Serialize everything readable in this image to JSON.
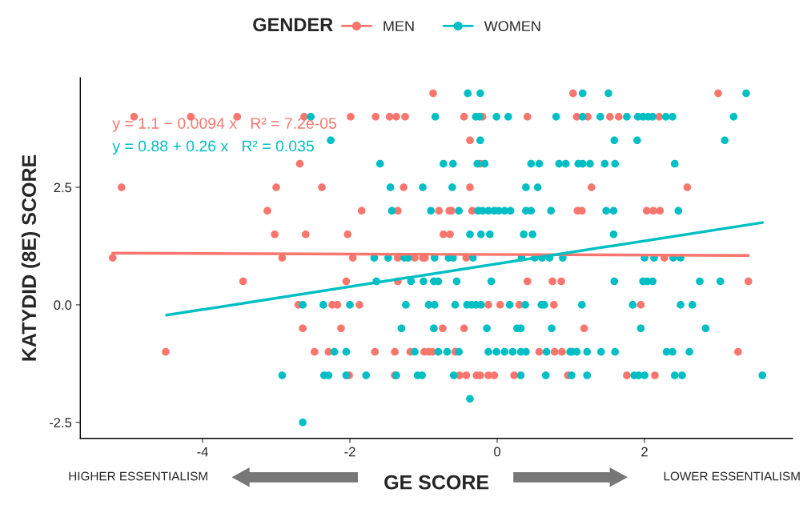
{
  "chart_data": {
    "type": "scatter",
    "xlabel": "GE SCORE",
    "ylabel": "KATYDID (8E) SCORE",
    "legend_title": "GENDER",
    "legend": "top",
    "marker": "circle",
    "xlim": [
      -5.66,
      4.01
    ],
    "ylim": [
      -2.84,
      4.83
    ],
    "xticks": [
      -4,
      -2,
      0,
      2
    ],
    "yticks": [
      {
        "value": -2.5,
        "label": "-2.5"
      },
      {
        "value": 0,
        "label": "0.0"
      },
      {
        "value": 2.5,
        "label": "2.5"
      }
    ],
    "annotations": [
      "y = 1.1 − 0.0094 x   R² = 7.2e-05",
      "y = 0.88 + 0.26 x   R² = 0.035",
      "HIGHER ESSENTIALISM",
      "LOWER ESSENTIALISM"
    ],
    "series": [
      {
        "name": "MEN",
        "color": "#f8766d",
        "x": [
          -0.87,
          1.03,
          3.0,
          -4.93,
          -4.16,
          -3.53,
          -2.62,
          -1.99,
          -1.65,
          -1.46,
          -1.37,
          -1.25,
          -0.45,
          -0.2,
          0.41,
          1.08,
          1.23,
          1.53,
          1.65,
          2.2,
          -0.37,
          -2.68,
          -0.23,
          -5.1,
          -3.0,
          -2.38,
          -1.27,
          -0.37,
          1.28,
          2.58,
          -3.12,
          -1.84,
          -1.35,
          -0.79,
          -0.65,
          -0.62,
          -0.34,
          1.09,
          1.15,
          2.03,
          2.12,
          2.21,
          -3.02,
          -2.6,
          -2.03,
          -0.73,
          -0.64,
          -5.22,
          -2.92,
          -1.96,
          -1.35,
          -1.12,
          -1.01,
          -0.98,
          -0.42,
          2.27,
          -3.45,
          -2.05,
          -1.35,
          0.41,
          0.75,
          0.87,
          3.41,
          -2.7,
          -2.24,
          -2.17,
          -1.87,
          -0.12,
          0.04,
          0.3,
          0.77,
          1.95,
          -2.64,
          -2.12,
          -0.74,
          -0.45,
          1.18,
          -4.5,
          -2.48,
          -2.29,
          -1.66,
          -1.39,
          -1.18,
          -0.99,
          -0.93,
          -0.88,
          -0.57,
          0.57,
          0.78,
          0.88,
          3.27,
          -2.01,
          -1.39,
          -0.51,
          -0.42,
          -0.28,
          -0.23,
          -0.12,
          -0.04,
          0.23,
          0.96,
          1.76,
          2.14
        ],
        "values": [
          4.5,
          4.5,
          4.5,
          4,
          4,
          4,
          4,
          4,
          4,
          4,
          4,
          4,
          4,
          4,
          4,
          4,
          4,
          4,
          4,
          4,
          3.5,
          3,
          3,
          2.5,
          2.5,
          2.5,
          2.5,
          2.5,
          2.5,
          2.5,
          2,
          2,
          2,
          2,
          2,
          2,
          2,
          2,
          2,
          2,
          2,
          2,
          1.5,
          1.5,
          1.5,
          1.5,
          1.5,
          1,
          1,
          1,
          1,
          1,
          1,
          1,
          1,
          1,
          0.5,
          0.5,
          0.5,
          0.5,
          0.5,
          0.5,
          0.5,
          0,
          0,
          0,
          0,
          0,
          0,
          0,
          0,
          0,
          -0.5,
          -0.5,
          -0.5,
          -0.5,
          -0.5,
          -1,
          -1,
          -1,
          -1,
          -1,
          -1,
          -1,
          -1,
          -1,
          -1,
          -1,
          -1,
          -1,
          -1,
          -1.5,
          -1.5,
          -1.5,
          -1.5,
          -1.5,
          -1.5,
          -1.5,
          -1.5,
          -1.5,
          -1.5,
          -1.5,
          -1.5
        ]
      },
      {
        "name": "WOMEN",
        "color": "#00bfc4",
        "x": [
          -0.4,
          -0.23,
          1.16,
          1.51,
          3.38,
          -2.53,
          -0.84,
          -0.29,
          -0.24,
          -0.01,
          0.15,
          0.8,
          1.16,
          1.4,
          1.76,
          1.91,
          1.98,
          2.05,
          2.11,
          2.29,
          2.38,
          3.21,
          -2.26,
          -0.23,
          1.59,
          1.9,
          3.09,
          -1.59,
          -0.73,
          -0.6,
          -0.27,
          -0.17,
          0.46,
          0.57,
          0.84,
          0.93,
          1.1,
          1.16,
          1.26,
          1.46,
          1.6,
          2.41,
          -1.45,
          -1.01,
          -0.61,
          0.39,
          0.55,
          -1.43,
          -0.9,
          -0.52,
          -0.26,
          -0.2,
          -0.12,
          -0.04,
          0.02,
          0.1,
          0.18,
          0.39,
          0.46,
          0.73,
          1.48,
          1.58,
          2.46,
          -0.37,
          -0.22,
          -0.1,
          0.36,
          0.48,
          1.58,
          -1.67,
          -1.48,
          -1.26,
          -1.21,
          -0.85,
          -0.66,
          -0.6,
          -0.33,
          0.33,
          0.51,
          0.61,
          0.71,
          0.89,
          2.0,
          2.13,
          2.39,
          2.49,
          -1.64,
          -1.17,
          -1.0,
          -0.86,
          -0.8,
          -0.55,
          -0.08,
          1.59,
          1.98,
          2.04,
          2.11,
          2.75,
          3.03,
          -2.64,
          -2.36,
          -2.0,
          -1.24,
          -0.93,
          -0.85,
          -0.57,
          -0.41,
          -0.35,
          -0.29,
          -0.22,
          0.17,
          0.38,
          0.6,
          0.64,
          1.15,
          1.84,
          2.49,
          2.65,
          -1.3,
          -0.86,
          -0.14,
          0.27,
          0.32,
          0.74,
          1.95,
          2.83,
          -2.21,
          -2.05,
          -1.12,
          -0.8,
          -0.68,
          -0.52,
          -0.12,
          -0.01,
          0.1,
          0.21,
          0.32,
          0.39,
          0.67,
          0.99,
          1.02,
          1.08,
          1.22,
          1.41,
          1.6,
          2.3,
          2.38,
          2.61,
          -2.92,
          -2.35,
          -2.29,
          -2.05,
          -1.78,
          -1.37,
          -1.08,
          -1.02,
          -0.59,
          0.32,
          0.66,
          1.01,
          1.22,
          1.86,
          1.92,
          2.0,
          2.41,
          2.51,
          3.6,
          -0.37,
          -2.64
        ],
        "values": [
          4.5,
          4.5,
          4.5,
          4.5,
          4.5,
          4,
          4,
          4,
          4,
          4,
          4,
          4,
          4,
          4,
          4,
          4,
          4,
          4,
          4,
          4,
          4,
          4,
          3.5,
          3.5,
          3.5,
          3.5,
          3.5,
          3,
          3,
          3,
          3,
          3,
          3,
          3,
          3,
          3,
          3,
          3,
          3,
          3,
          3,
          3,
          2.5,
          2.5,
          2.5,
          2.5,
          2.5,
          2,
          2,
          2,
          2,
          2,
          2,
          2,
          2,
          2,
          2,
          2,
          2,
          2,
          2,
          2,
          2,
          1.5,
          1.5,
          1.5,
          1.5,
          1.5,
          1.5,
          1,
          1,
          1,
          1,
          1,
          1,
          1,
          1,
          1,
          1,
          1,
          1,
          1,
          1,
          1,
          1,
          1,
          0.5,
          0.5,
          0.5,
          0.5,
          0.5,
          0.5,
          0.5,
          0.5,
          0.5,
          0.5,
          0.5,
          0.5,
          0.5,
          0,
          0,
          0,
          0,
          0,
          0,
          0,
          0,
          0,
          0,
          0,
          0,
          0,
          0,
          0,
          0,
          0,
          0,
          0,
          -0.5,
          -0.5,
          -0.5,
          -0.5,
          -0.5,
          -0.5,
          -0.5,
          -0.5,
          -1,
          -1,
          -1,
          -1,
          -1,
          -1,
          -1,
          -1,
          -1,
          -1,
          -1,
          -1,
          -1,
          -1,
          -1,
          -1,
          -1,
          -1,
          -1,
          -1,
          -1,
          -1,
          -1.5,
          -1.5,
          -1.5,
          -1.5,
          -1.5,
          -1.5,
          -1.5,
          -1.5,
          -1.5,
          -1.5,
          -1.5,
          -1.5,
          -1.5,
          -1.5,
          -1.5,
          -1.5,
          -1.5,
          -1.5,
          -1.5,
          -2,
          -2.5
        ]
      },
      {
        "type": "line",
        "color": "#f8766d",
        "line_style": "solid",
        "marker": "none",
        "x": [
          -5.22,
          3.41
        ],
        "values": [
          1.1,
          1.05
        ]
      },
      {
        "type": "line",
        "color": "#00bfc4",
        "line_style": "solid",
        "marker": "none",
        "x": [
          -4.49,
          3.6
        ],
        "values": [
          -0.22,
          1.75
        ]
      }
    ]
  }
}
